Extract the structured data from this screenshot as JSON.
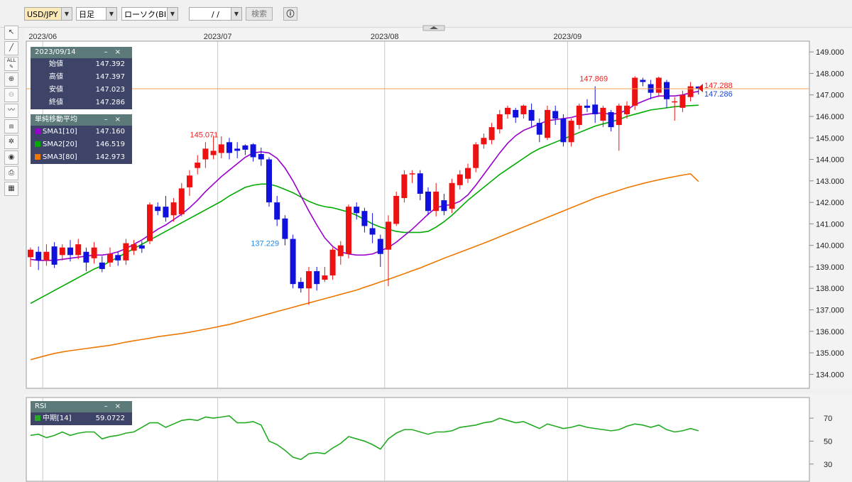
{
  "toolbar": {
    "pair": "USD/JPY",
    "timeframe": "日足",
    "chart_type": "ローソク(BID)",
    "date_value": "/ /",
    "search_label": "検索",
    "info_icon": "info-icon"
  },
  "tools": [
    "cursor-icon",
    "line-draw-icon",
    "all-erase-icon",
    "zoom-in-icon",
    "zoom-out-icon",
    "technical-icon",
    "data-table-icon",
    "settings-icon",
    "eye-icon",
    "print-icon",
    "grid-icon"
  ],
  "ohlc_panel": {
    "date": "2023/09/14",
    "rows": [
      {
        "label": "始値",
        "value": "147.392"
      },
      {
        "label": "高値",
        "value": "147.397"
      },
      {
        "label": "安値",
        "value": "147.023"
      },
      {
        "label": "終値",
        "value": "147.286"
      }
    ]
  },
  "sma_panel": {
    "title": "単純移動平均",
    "rows": [
      {
        "label": "SMA1[10]",
        "value": "147.160",
        "color": "#9900cc"
      },
      {
        "label": "SMA2[20]",
        "value": "146.519",
        "color": "#00aa00"
      },
      {
        "label": "SMA3[80]",
        "value": "142.973",
        "color": "#ee7700"
      }
    ]
  },
  "rsi_panel": {
    "title": "RSI",
    "rows": [
      {
        "label": "中期[14]",
        "value": "59.0722",
        "color": "#22aa22"
      }
    ]
  },
  "chart_data": {
    "type": "candlestick",
    "instrument": "USD/JPY",
    "x_labels": [
      "2023/06",
      "2023/07",
      "2023/08",
      "2023/09"
    ],
    "x_label_candle_index": [
      1,
      23,
      44,
      67
    ],
    "y_ticks": [
      "149.000",
      "148.000",
      "147.000",
      "146.000",
      "145.000",
      "144.000",
      "143.000",
      "142.000",
      "141.000",
      "140.000",
      "139.000",
      "138.000",
      "137.000",
      "136.000",
      "135.000",
      "134.000"
    ],
    "ylim": [
      133.35,
      149.5
    ],
    "annotations": {
      "high": {
        "text": "147.869",
        "index": 71
      },
      "high2": {
        "text": "145.071",
        "index": 22
      },
      "low": {
        "text": "137.229",
        "index": 31
      },
      "bid": "147.288",
      "ask": "147.286",
      "current": 147.288
    },
    "candles": [
      [
        139.45,
        139.8,
        139.0,
        139.9
      ],
      [
        139.7,
        139.3,
        138.85,
        139.95
      ],
      [
        139.3,
        139.7,
        139.05,
        140.05
      ],
      [
        139.95,
        139.1,
        138.95,
        140.15
      ],
      [
        139.55,
        139.9,
        139.3,
        140.05
      ],
      [
        139.9,
        139.55,
        139.25,
        140.25
      ],
      [
        139.55,
        140.05,
        139.35,
        140.3
      ],
      [
        139.7,
        139.2,
        138.8,
        139.9
      ],
      [
        139.4,
        139.9,
        139.15,
        140.15
      ],
      [
        139.2,
        138.9,
        138.75,
        139.5
      ],
      [
        139.2,
        139.6,
        139.0,
        139.9
      ],
      [
        139.55,
        139.3,
        139.05,
        139.7
      ],
      [
        139.3,
        140.1,
        139.1,
        140.3
      ],
      [
        139.75,
        140.05,
        139.55,
        140.25
      ],
      [
        140.0,
        139.85,
        139.65,
        140.2
      ],
      [
        140.2,
        141.9,
        140.05,
        142.0
      ],
      [
        141.8,
        141.6,
        141.4,
        142.0
      ],
      [
        141.8,
        141.3,
        141.1,
        142.3
      ],
      [
        141.4,
        142.0,
        141.1,
        142.2
      ],
      [
        141.45,
        142.65,
        141.35,
        142.9
      ],
      [
        142.7,
        143.25,
        142.3,
        143.5
      ],
      [
        143.6,
        143.85,
        143.3,
        144.2
      ],
      [
        144.0,
        144.5,
        143.6,
        144.8
      ],
      [
        144.2,
        144.4,
        144.0,
        145.1
      ],
      [
        144.3,
        144.7,
        144.05,
        145.07
      ],
      [
        144.8,
        144.3,
        144.0,
        145.0
      ],
      [
        144.5,
        144.4,
        144.05,
        144.8
      ],
      [
        144.65,
        144.45,
        144.2,
        144.7
      ],
      [
        144.7,
        144.1,
        143.9,
        144.75
      ],
      [
        144.25,
        144.0,
        143.7,
        144.55
      ],
      [
        144.0,
        142.0,
        141.8,
        144.1
      ],
      [
        142.0,
        141.2,
        140.9,
        142.3
      ],
      [
        141.25,
        140.3,
        140.0,
        141.4
      ],
      [
        140.3,
        138.2,
        138.0,
        140.5
      ],
      [
        138.3,
        138.0,
        137.8,
        138.5
      ],
      [
        138.0,
        138.8,
        137.23,
        139.0
      ],
      [
        138.8,
        138.2,
        137.9,
        139.0
      ],
      [
        138.4,
        138.6,
        138.3,
        139.0
      ],
      [
        138.6,
        139.8,
        138.4,
        139.9
      ],
      [
        139.5,
        140.0,
        139.1,
        140.2
      ],
      [
        139.6,
        141.8,
        139.4,
        141.9
      ],
      [
        141.8,
        141.5,
        141.2,
        142.0
      ],
      [
        141.6,
        140.9,
        140.6,
        141.75
      ],
      [
        140.8,
        140.5,
        140.1,
        141.5
      ],
      [
        140.3,
        139.6,
        139.0,
        140.5
      ],
      [
        139.8,
        141.1,
        138.1,
        141.4
      ],
      [
        141.0,
        142.3,
        140.9,
        142.5
      ],
      [
        142.2,
        143.3,
        142.0,
        143.5
      ],
      [
        143.3,
        143.35,
        142.9,
        143.5
      ],
      [
        143.35,
        142.4,
        142.1,
        143.5
      ],
      [
        142.5,
        141.6,
        141.4,
        142.7
      ],
      [
        141.6,
        142.5,
        141.35,
        142.9
      ],
      [
        142.1,
        141.6,
        141.4,
        142.4
      ],
      [
        141.7,
        142.9,
        141.5,
        143.1
      ],
      [
        142.8,
        143.3,
        142.6,
        143.5
      ],
      [
        143.1,
        143.6,
        142.9,
        143.8
      ],
      [
        143.6,
        144.7,
        143.4,
        144.8
      ],
      [
        144.7,
        145.0,
        144.5,
        145.2
      ],
      [
        144.9,
        145.5,
        144.7,
        145.7
      ],
      [
        145.4,
        146.1,
        145.2,
        146.3
      ],
      [
        146.1,
        146.4,
        145.9,
        146.5
      ],
      [
        146.3,
        145.95,
        145.7,
        146.4
      ],
      [
        146.1,
        146.5,
        145.9,
        146.55
      ],
      [
        146.3,
        145.8,
        145.5,
        146.6
      ],
      [
        145.7,
        145.15,
        144.8,
        145.9
      ],
      [
        145.0,
        146.3,
        144.9,
        146.5
      ],
      [
        146.25,
        145.9,
        145.6,
        146.5
      ],
      [
        145.9,
        144.8,
        144.6,
        146.1
      ],
      [
        144.8,
        145.8,
        144.6,
        145.9
      ],
      [
        145.6,
        146.5,
        145.4,
        146.6
      ],
      [
        146.5,
        146.4,
        146.2,
        146.8
      ],
      [
        146.55,
        146.1,
        145.7,
        147.4
      ],
      [
        145.8,
        146.4,
        145.5,
        146.5
      ],
      [
        146.2,
        145.5,
        145.3,
        146.3
      ],
      [
        145.6,
        146.5,
        144.4,
        146.6
      ],
      [
        146.1,
        146.5,
        145.9,
        146.7
      ],
      [
        146.5,
        147.8,
        146.3,
        147.87
      ],
      [
        147.7,
        147.6,
        147.4,
        147.8
      ],
      [
        147.5,
        147.1,
        146.8,
        147.7
      ],
      [
        147.1,
        147.8,
        146.9,
        147.85
      ],
      [
        147.6,
        146.8,
        146.4,
        147.7
      ],
      [
        146.7,
        146.7,
        145.8,
        146.9
      ],
      [
        146.4,
        147.0,
        146.2,
        147.2
      ],
      [
        146.9,
        147.4,
        146.7,
        147.6
      ],
      [
        147.39,
        147.29,
        147.02,
        147.4
      ]
    ],
    "sma10": [
      139.35,
      139.3,
      139.3,
      139.3,
      139.35,
      139.4,
      139.45,
      139.5,
      139.55,
      139.55,
      139.6,
      139.7,
      139.85,
      140.05,
      140.25,
      140.5,
      140.75,
      140.95,
      141.2,
      141.45,
      141.75,
      142.1,
      142.5,
      142.85,
      143.2,
      143.5,
      143.8,
      144.1,
      144.3,
      144.35,
      144.3,
      144.05,
      143.6,
      143.0,
      142.3,
      141.6,
      140.95,
      140.35,
      139.95,
      139.7,
      139.6,
      139.55,
      139.55,
      139.6,
      139.75,
      139.9,
      140.15,
      140.45,
      140.75,
      141.1,
      141.45,
      141.75,
      141.85,
      141.9,
      142.05,
      142.35,
      142.8,
      143.3,
      143.8,
      144.3,
      144.75,
      145.1,
      145.35,
      145.5,
      145.65,
      145.8,
      145.85,
      145.9,
      145.95,
      146.05,
      146.1,
      146.15,
      146.15,
      146.1,
      146.15,
      146.3,
      146.55,
      146.7,
      146.85,
      146.95,
      146.95,
      146.95,
      147.0,
      147.1,
      147.16
    ],
    "sma20": [
      137.3,
      137.5,
      137.7,
      137.9,
      138.1,
      138.3,
      138.5,
      138.7,
      138.9,
      139.05,
      139.25,
      139.45,
      139.65,
      139.85,
      140.05,
      140.25,
      140.45,
      140.65,
      140.85,
      141.05,
      141.25,
      141.45,
      141.65,
      141.85,
      142.05,
      142.3,
      142.5,
      142.7,
      142.8,
      142.85,
      142.85,
      142.75,
      142.6,
      142.45,
      142.25,
      142.05,
      141.9,
      141.8,
      141.75,
      141.65,
      141.55,
      141.4,
      141.2,
      141.0,
      140.85,
      140.75,
      140.65,
      140.6,
      140.6,
      140.6,
      140.65,
      140.85,
      141.1,
      141.4,
      141.75,
      142.1,
      142.4,
      142.7,
      143.0,
      143.3,
      143.55,
      143.8,
      144.05,
      144.3,
      144.5,
      144.65,
      144.8,
      144.95,
      145.1,
      145.25,
      145.4,
      145.55,
      145.65,
      145.75,
      145.85,
      146.0,
      146.1,
      146.2,
      146.3,
      146.35,
      146.4,
      146.45,
      146.48,
      146.5,
      146.52
    ],
    "sma80": [
      134.68,
      134.78,
      134.88,
      134.97,
      135.04,
      135.1,
      135.15,
      135.2,
      135.25,
      135.3,
      135.35,
      135.42,
      135.5,
      135.56,
      135.62,
      135.68,
      135.75,
      135.8,
      135.85,
      135.9,
      135.96,
      136.03,
      136.1,
      136.17,
      136.25,
      136.32,
      136.42,
      136.52,
      136.62,
      136.72,
      136.82,
      136.92,
      137.02,
      137.12,
      137.22,
      137.32,
      137.42,
      137.52,
      137.62,
      137.72,
      137.82,
      137.92,
      138.05,
      138.17,
      138.3,
      138.42,
      138.55,
      138.68,
      138.82,
      138.95,
      139.1,
      139.25,
      139.4,
      139.54,
      139.68,
      139.82,
      139.96,
      140.1,
      140.25,
      140.4,
      140.55,
      140.7,
      140.85,
      141.0,
      141.15,
      141.3,
      141.45,
      141.6,
      141.75,
      141.9,
      142.05,
      142.2,
      142.32,
      142.44,
      142.56,
      142.68,
      142.78,
      142.88,
      142.97,
      143.05,
      143.13,
      143.2,
      143.27,
      143.33,
      142.973
    ],
    "rsi": {
      "y_ticks": [
        70,
        50,
        30
      ],
      "ylim": [
        15,
        88
      ],
      "values": [
        55,
        56,
        53,
        55,
        58,
        55,
        57,
        58,
        58,
        52,
        54,
        55,
        57,
        58,
        62,
        66,
        66,
        62,
        65,
        68,
        69,
        68,
        71,
        70,
        71,
        72,
        66,
        66,
        67,
        64,
        50,
        47,
        42,
        36,
        34,
        39,
        40,
        39,
        44,
        48,
        54,
        52,
        50,
        47,
        43,
        52,
        57,
        60,
        60,
        58,
        56,
        58,
        58,
        59,
        62,
        63,
        64,
        66,
        67,
        70,
        68,
        66,
        67,
        64,
        61,
        65,
        63,
        61,
        62,
        64,
        62,
        61,
        60,
        59,
        60,
        63,
        65,
        64,
        62,
        64,
        60,
        58,
        59,
        61,
        59
      ]
    }
  }
}
